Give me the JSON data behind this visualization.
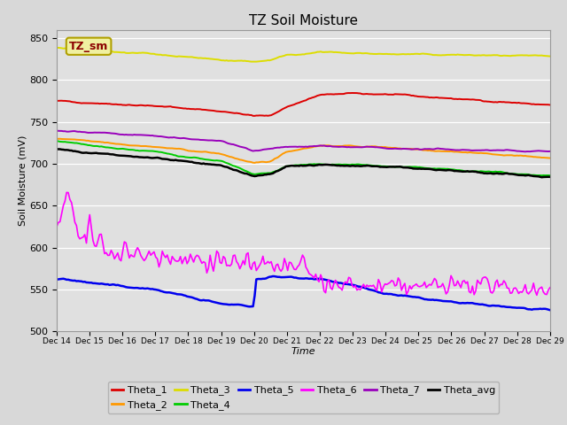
{
  "title": "TZ Soil Moisture",
  "xlabel": "Time",
  "ylabel": "Soil Moisture (mV)",
  "ylim": [
    500,
    860
  ],
  "xlim": [
    0,
    15
  ],
  "fig_bg_color": "#d8d8d8",
  "plot_bg_color": "#e0e0e0",
  "legend_label": "TZ_sm",
  "legend_label_color": "#8B0000",
  "legend_label_bg": "#f0f0a0",
  "legend_label_border": "#b0a000",
  "series_colors": {
    "Theta_1": "#dd0000",
    "Theta_2": "#ff9900",
    "Theta_3": "#dddd00",
    "Theta_4": "#00cc00",
    "Theta_5": "#0000ee",
    "Theta_6": "#ff00ff",
    "Theta_7": "#9900bb",
    "Theta_avg": "#000000"
  },
  "x_tick_labels": [
    "Dec 14",
    "Dec 15",
    "Dec 16",
    "Dec 17",
    "Dec 18",
    "Dec 19",
    "Dec 20",
    "Dec 21",
    "Dec 22",
    "Dec 23",
    "Dec 24",
    "Dec 25",
    "Dec 26",
    "Dec 27",
    "Dec 28",
    "Dec 29"
  ],
  "y_ticks": [
    500,
    550,
    600,
    650,
    700,
    750,
    800,
    850
  ],
  "n_points": 300
}
